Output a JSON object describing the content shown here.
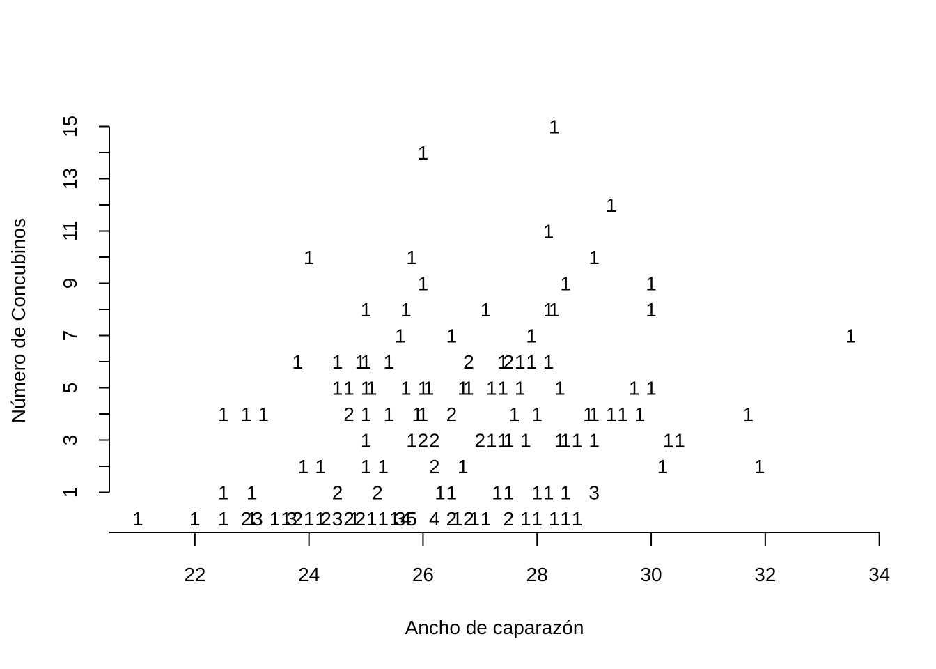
{
  "chart_data": {
    "type": "scatter",
    "marker": "count-labels",
    "xlabel": "Ancho de caparazón",
    "ylabel": "Número de Concubinos",
    "xlim": [
      20.5,
      34
    ],
    "ylim": [
      0,
      15
    ],
    "x_ticks": [
      22,
      24,
      26,
      28,
      30,
      32,
      34
    ],
    "x_tick_labels": [
      "22",
      "24",
      "26",
      "28",
      "30",
      "32",
      "34"
    ],
    "y_ticks": [
      1,
      2,
      3,
      4,
      5,
      6,
      7,
      8,
      9,
      10,
      11,
      12,
      13,
      14,
      15
    ],
    "y_tick_labels": [
      "1",
      "",
      "3",
      "",
      "5",
      "",
      "7",
      "",
      "9",
      "",
      "11",
      "",
      "13",
      "",
      "15"
    ],
    "grid": false,
    "legend": "none",
    "points": [
      {
        "x": 28.3,
        "y": 15,
        "label": "1"
      },
      {
        "x": 26.0,
        "y": 14,
        "label": "1"
      },
      {
        "x": 29.3,
        "y": 12,
        "label": "1"
      },
      {
        "x": 28.2,
        "y": 11,
        "label": "1"
      },
      {
        "x": 24.0,
        "y": 10,
        "label": "1"
      },
      {
        "x": 25.8,
        "y": 10,
        "label": "1"
      },
      {
        "x": 29.0,
        "y": 10,
        "label": "1"
      },
      {
        "x": 26.0,
        "y": 9,
        "label": "1"
      },
      {
        "x": 28.5,
        "y": 9,
        "label": "1"
      },
      {
        "x": 30.0,
        "y": 9,
        "label": "1"
      },
      {
        "x": 25.0,
        "y": 8,
        "label": "1"
      },
      {
        "x": 25.7,
        "y": 8,
        "label": "1"
      },
      {
        "x": 27.1,
        "y": 8,
        "label": "1"
      },
      {
        "x": 28.2,
        "y": 8,
        "label": "1"
      },
      {
        "x": 28.3,
        "y": 8,
        "label": "1"
      },
      {
        "x": 30.0,
        "y": 8,
        "label": "1"
      },
      {
        "x": 25.6,
        "y": 7,
        "label": "1"
      },
      {
        "x": 26.5,
        "y": 7,
        "label": "1"
      },
      {
        "x": 27.9,
        "y": 7,
        "label": "1"
      },
      {
        "x": 33.5,
        "y": 7,
        "label": "1"
      },
      {
        "x": 23.8,
        "y": 6,
        "label": "1"
      },
      {
        "x": 24.5,
        "y": 6,
        "label": "1"
      },
      {
        "x": 24.9,
        "y": 6,
        "label": "1"
      },
      {
        "x": 25.0,
        "y": 6,
        "label": "1"
      },
      {
        "x": 25.4,
        "y": 6,
        "label": "1"
      },
      {
        "x": 26.8,
        "y": 6,
        "label": "2"
      },
      {
        "x": 27.4,
        "y": 6,
        "label": "1"
      },
      {
        "x": 27.5,
        "y": 6,
        "label": "2"
      },
      {
        "x": 27.7,
        "y": 6,
        "label": "1"
      },
      {
        "x": 27.9,
        "y": 6,
        "label": "1"
      },
      {
        "x": 28.2,
        "y": 6,
        "label": "1"
      },
      {
        "x": 24.5,
        "y": 5,
        "label": "1"
      },
      {
        "x": 24.7,
        "y": 5,
        "label": "1"
      },
      {
        "x": 25.0,
        "y": 5,
        "label": "1"
      },
      {
        "x": 25.1,
        "y": 5,
        "label": "1"
      },
      {
        "x": 25.7,
        "y": 5,
        "label": "1"
      },
      {
        "x": 26.0,
        "y": 5,
        "label": "1"
      },
      {
        "x": 26.1,
        "y": 5,
        "label": "1"
      },
      {
        "x": 26.7,
        "y": 5,
        "label": "1"
      },
      {
        "x": 26.8,
        "y": 5,
        "label": "1"
      },
      {
        "x": 27.2,
        "y": 5,
        "label": "1"
      },
      {
        "x": 27.4,
        "y": 5,
        "label": "1"
      },
      {
        "x": 27.7,
        "y": 5,
        "label": "1"
      },
      {
        "x": 28.4,
        "y": 5,
        "label": "1"
      },
      {
        "x": 29.7,
        "y": 5,
        "label": "1"
      },
      {
        "x": 30.0,
        "y": 5,
        "label": "1"
      },
      {
        "x": 22.5,
        "y": 4,
        "label": "1"
      },
      {
        "x": 22.9,
        "y": 4,
        "label": "1"
      },
      {
        "x": 23.2,
        "y": 4,
        "label": "1"
      },
      {
        "x": 24.7,
        "y": 4,
        "label": "2"
      },
      {
        "x": 25.0,
        "y": 4,
        "label": "1"
      },
      {
        "x": 25.4,
        "y": 4,
        "label": "1"
      },
      {
        "x": 25.9,
        "y": 4,
        "label": "1"
      },
      {
        "x": 26.0,
        "y": 4,
        "label": "1"
      },
      {
        "x": 26.5,
        "y": 4,
        "label": "2"
      },
      {
        "x": 27.6,
        "y": 4,
        "label": "1"
      },
      {
        "x": 28.0,
        "y": 4,
        "label": "1"
      },
      {
        "x": 28.9,
        "y": 4,
        "label": "1"
      },
      {
        "x": 29.0,
        "y": 4,
        "label": "1"
      },
      {
        "x": 29.3,
        "y": 4,
        "label": "1"
      },
      {
        "x": 29.5,
        "y": 4,
        "label": "1"
      },
      {
        "x": 29.8,
        "y": 4,
        "label": "1"
      },
      {
        "x": 31.7,
        "y": 4,
        "label": "1"
      },
      {
        "x": 25.0,
        "y": 3,
        "label": "1"
      },
      {
        "x": 25.8,
        "y": 3,
        "label": "1"
      },
      {
        "x": 26.0,
        "y": 3,
        "label": "2"
      },
      {
        "x": 26.2,
        "y": 3,
        "label": "2"
      },
      {
        "x": 27.0,
        "y": 3,
        "label": "2"
      },
      {
        "x": 27.2,
        "y": 3,
        "label": "1"
      },
      {
        "x": 27.4,
        "y": 3,
        "label": "1"
      },
      {
        "x": 27.5,
        "y": 3,
        "label": "1"
      },
      {
        "x": 27.8,
        "y": 3,
        "label": "1"
      },
      {
        "x": 28.4,
        "y": 3,
        "label": "1"
      },
      {
        "x": 28.5,
        "y": 3,
        "label": "1"
      },
      {
        "x": 28.7,
        "y": 3,
        "label": "1"
      },
      {
        "x": 29.0,
        "y": 3,
        "label": "1"
      },
      {
        "x": 30.3,
        "y": 3,
        "label": "1"
      },
      {
        "x": 30.5,
        "y": 3,
        "label": "1"
      },
      {
        "x": 23.9,
        "y": 2,
        "label": "1"
      },
      {
        "x": 24.2,
        "y": 2,
        "label": "1"
      },
      {
        "x": 25.0,
        "y": 2,
        "label": "1"
      },
      {
        "x": 25.3,
        "y": 2,
        "label": "1"
      },
      {
        "x": 26.2,
        "y": 2,
        "label": "2"
      },
      {
        "x": 26.7,
        "y": 2,
        "label": "1"
      },
      {
        "x": 30.2,
        "y": 2,
        "label": "1"
      },
      {
        "x": 31.9,
        "y": 2,
        "label": "1"
      },
      {
        "x": 22.5,
        "y": 1,
        "label": "1"
      },
      {
        "x": 23.0,
        "y": 1,
        "label": "1"
      },
      {
        "x": 24.5,
        "y": 1,
        "label": "2"
      },
      {
        "x": 25.2,
        "y": 1,
        "label": "2"
      },
      {
        "x": 26.3,
        "y": 1,
        "label": "1"
      },
      {
        "x": 26.5,
        "y": 1,
        "label": "1"
      },
      {
        "x": 27.3,
        "y": 1,
        "label": "1"
      },
      {
        "x": 27.5,
        "y": 1,
        "label": "1"
      },
      {
        "x": 28.0,
        "y": 1,
        "label": "1"
      },
      {
        "x": 28.2,
        "y": 1,
        "label": "1"
      },
      {
        "x": 28.5,
        "y": 1,
        "label": "1"
      },
      {
        "x": 29.0,
        "y": 1,
        "label": "3"
      },
      {
        "x": 21.0,
        "y": 0,
        "label": "1"
      },
      {
        "x": 22.0,
        "y": 0,
        "label": "1"
      },
      {
        "x": 22.5,
        "y": 0,
        "label": "1"
      },
      {
        "x": 22.9,
        "y": 0,
        "label": "2"
      },
      {
        "x": 23.0,
        "y": 0,
        "label": "1"
      },
      {
        "x": 23.1,
        "y": 0,
        "label": "3"
      },
      {
        "x": 23.4,
        "y": 0,
        "label": "1"
      },
      {
        "x": 23.6,
        "y": 0,
        "label": "1"
      },
      {
        "x": 23.7,
        "y": 0,
        "label": "3"
      },
      {
        "x": 23.8,
        "y": 0,
        "label": "2"
      },
      {
        "x": 24.0,
        "y": 0,
        "label": "1"
      },
      {
        "x": 24.2,
        "y": 0,
        "label": "1"
      },
      {
        "x": 24.3,
        "y": 0,
        "label": "2"
      },
      {
        "x": 24.5,
        "y": 0,
        "label": "3"
      },
      {
        "x": 24.7,
        "y": 0,
        "label": "2"
      },
      {
        "x": 24.8,
        "y": 0,
        "label": "1"
      },
      {
        "x": 24.9,
        "y": 0,
        "label": "2"
      },
      {
        "x": 25.1,
        "y": 0,
        "label": "1"
      },
      {
        "x": 25.3,
        "y": 0,
        "label": "1"
      },
      {
        "x": 25.5,
        "y": 0,
        "label": "1"
      },
      {
        "x": 25.6,
        "y": 0,
        "label": "3"
      },
      {
        "x": 25.7,
        "y": 0,
        "label": "4"
      },
      {
        "x": 25.8,
        "y": 0,
        "label": "5"
      },
      {
        "x": 26.2,
        "y": 0,
        "label": "4"
      },
      {
        "x": 26.5,
        "y": 0,
        "label": "2"
      },
      {
        "x": 26.6,
        "y": 0,
        "label": "1"
      },
      {
        "x": 26.8,
        "y": 0,
        "label": "2"
      },
      {
        "x": 26.9,
        "y": 0,
        "label": "1"
      },
      {
        "x": 27.1,
        "y": 0,
        "label": "1"
      },
      {
        "x": 27.5,
        "y": 0,
        "label": "2"
      },
      {
        "x": 27.8,
        "y": 0,
        "label": "1"
      },
      {
        "x": 28.0,
        "y": 0,
        "label": "1"
      },
      {
        "x": 28.3,
        "y": 0,
        "label": "1"
      },
      {
        "x": 28.5,
        "y": 0,
        "label": "1"
      },
      {
        "x": 28.7,
        "y": 0,
        "label": "1"
      }
    ]
  }
}
